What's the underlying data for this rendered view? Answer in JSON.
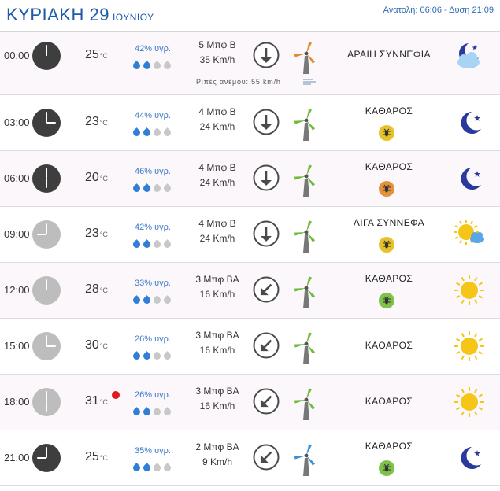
{
  "header": {
    "day": "ΚΥΡΙΑΚΗ 29",
    "month": "ΙΟΥΝΙΟΥ",
    "sun": "Ανατολή: 06:06 - Δύση 21:09"
  },
  "gust_label": "Ριπές ανέμου: 55 km/h",
  "rows": [
    {
      "time": "00:00",
      "clock": "dark",
      "hour_angle": 0,
      "temp": "25",
      "deg": "°C",
      "humidity": "42% υγρ.",
      "drops": 2,
      "wind_bft": "5 Μπφ Β",
      "wind_kmh": "35 Km/h",
      "wind_dir_deg": 180,
      "turbine": "orange",
      "condition": "ΑΡΑΙΗ ΣΥΝΝΕΦΙΑ",
      "pollen": null,
      "icon": "moon-cloud-icon",
      "hot": false
    },
    {
      "time": "03:00",
      "clock": "dark",
      "hour_angle": 90,
      "temp": "23",
      "deg": "°C",
      "humidity": "44% υγρ.",
      "drops": 2,
      "wind_bft": "4 Μπφ Β",
      "wind_kmh": "24 Km/h",
      "wind_dir_deg": 180,
      "turbine": "green",
      "condition": "ΚΑΘΑΡΟΣ",
      "pollen": "#e6c12a",
      "icon": "moon-icon",
      "hot": false
    },
    {
      "time": "06:00",
      "clock": "dark",
      "hour_angle": 180,
      "temp": "20",
      "deg": "°C",
      "humidity": "46% υγρ.",
      "drops": 2,
      "wind_bft": "4 Μπφ Β",
      "wind_kmh": "24 Km/h",
      "wind_dir_deg": 180,
      "turbine": "green",
      "condition": "ΚΑΘΑΡΟΣ",
      "pollen": "#e2923a",
      "icon": "moon-icon",
      "hot": false
    },
    {
      "time": "09:00",
      "clock": "light",
      "hour_angle": 270,
      "temp": "23",
      "deg": "°C",
      "humidity": "42% υγρ.",
      "drops": 2,
      "wind_bft": "4 Μπφ Β",
      "wind_kmh": "24 Km/h",
      "wind_dir_deg": 180,
      "turbine": "green",
      "condition": "ΛΙΓΑ ΣΥΝΝΕΦΑ",
      "pollen": "#e6c12a",
      "icon": "sun-cloud-icon",
      "hot": false
    },
    {
      "time": "12:00",
      "clock": "light",
      "hour_angle": 0,
      "temp": "28",
      "deg": "°C",
      "humidity": "33% υγρ.",
      "drops": 2,
      "wind_bft": "3 Μπφ ΒΑ",
      "wind_kmh": "16 Km/h",
      "wind_dir_deg": 225,
      "turbine": "green",
      "condition": "ΚΑΘΑΡΟΣ",
      "pollen": "#7fc24a",
      "icon": "sun-icon",
      "hot": false
    },
    {
      "time": "15:00",
      "clock": "light",
      "hour_angle": 90,
      "temp": "30",
      "deg": "°C",
      "humidity": "26% υγρ.",
      "drops": 2,
      "wind_bft": "3 Μπφ ΒΑ",
      "wind_kmh": "16 Km/h",
      "wind_dir_deg": 225,
      "turbine": "green",
      "condition": "ΚΑΘΑΡΟΣ",
      "pollen": null,
      "icon": "sun-icon",
      "hot": false
    },
    {
      "time": "18:00",
      "clock": "light",
      "hour_angle": 180,
      "temp": "31",
      "deg": "°C",
      "humidity": "26% υγρ.",
      "drops": 2,
      "wind_bft": "3 Μπφ ΒΑ",
      "wind_kmh": "16 Km/h",
      "wind_dir_deg": 225,
      "turbine": "green",
      "condition": "ΚΑΘΑΡΟΣ",
      "pollen": null,
      "icon": "sun-icon",
      "hot": true
    },
    {
      "time": "21:00",
      "clock": "dark",
      "hour_angle": 270,
      "temp": "25",
      "deg": "°C",
      "humidity": "35% υγρ.",
      "drops": 2,
      "wind_bft": "2 Μπφ ΒΑ",
      "wind_kmh": "9 Km/h",
      "wind_dir_deg": 225,
      "turbine": "blue",
      "condition": "ΚΑΘΑΡΟΣ",
      "pollen": "#7fc24a",
      "icon": "moon-icon",
      "hot": false
    }
  ],
  "colors": {
    "accent": "#1e5aa8",
    "drop_on": "#2f7fd6",
    "sun": "#f5c518",
    "moon": "#2a3a9c"
  }
}
